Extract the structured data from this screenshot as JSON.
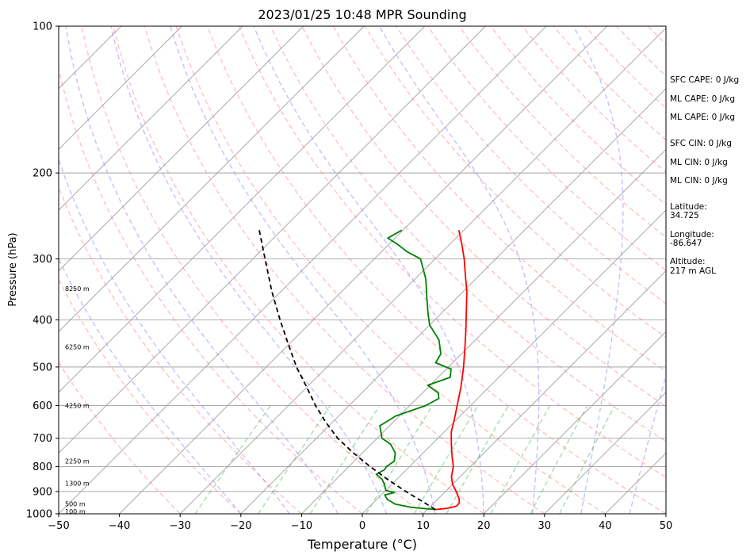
{
  "chart_data": {
    "type": "line",
    "title": "2023/01/25 10:48 MPR Sounding",
    "xlabel": "Temperature (°C)",
    "ylabel": "Pressure (hPa)",
    "xlim": [
      -50,
      50
    ],
    "ylim": [
      1000,
      100
    ],
    "y_scale": "log",
    "x_ticks": [
      -50,
      -40,
      -30,
      -20,
      -10,
      0,
      10,
      20,
      30,
      40,
      50
    ],
    "x_tick_labels": [
      "−50",
      "−40",
      "−30",
      "−20",
      "−10",
      "0",
      "10",
      "20",
      "30",
      "40",
      "50"
    ],
    "y_ticks": [
      1000,
      900,
      800,
      700,
      600,
      500,
      400,
      300,
      200,
      100
    ],
    "y_tick_labels": [
      "1000",
      "900",
      "800",
      "700",
      "600",
      "500",
      "400",
      "300",
      "200",
      "100"
    ],
    "grid": true,
    "series": [
      {
        "name": "",
        "kind": "temperature",
        "color": "#ff0000",
        "points": [
          {
            "p": 980,
            "t": 11.3
          },
          {
            "p": 975,
            "t": 13.0
          },
          {
            "p": 965,
            "t": 14.2
          },
          {
            "p": 950,
            "t": 14.2
          },
          {
            "p": 930,
            "t": 13.4
          },
          {
            "p": 900,
            "t": 11.8
          },
          {
            "p": 870,
            "t": 10.0
          },
          {
            "p": 840,
            "t": 8.6
          },
          {
            "p": 800,
            "t": 7.2
          },
          {
            "p": 760,
            "t": 5.2
          },
          {
            "p": 720,
            "t": 3.2
          },
          {
            "p": 680,
            "t": 1.2
          },
          {
            "p": 640,
            "t": -0.4
          },
          {
            "p": 600,
            "t": -2.2
          },
          {
            "p": 550,
            "t": -4.6
          },
          {
            "p": 500,
            "t": -7.5
          },
          {
            "p": 460,
            "t": -10.2
          },
          {
            "p": 420,
            "t": -13.2
          },
          {
            "p": 380,
            "t": -16.6
          },
          {
            "p": 350,
            "t": -19.4
          },
          {
            "p": 320,
            "t": -22.8
          },
          {
            "p": 300,
            "t": -25.2
          },
          {
            "p": 280,
            "t": -28.0
          },
          {
            "p": 262,
            "t": -30.8
          }
        ]
      },
      {
        "name": "",
        "kind": "dewpoint",
        "color": "#008000",
        "points": [
          {
            "p": 980,
            "t": 11.3
          },
          {
            "p": 970,
            "t": 7.0
          },
          {
            "p": 955,
            "t": 3.8
          },
          {
            "p": 935,
            "t": 1.8
          },
          {
            "p": 915,
            "t": 0.6
          },
          {
            "p": 905,
            "t": 1.8
          },
          {
            "p": 895,
            "t": 0.0
          },
          {
            "p": 870,
            "t": -1.2
          },
          {
            "p": 850,
            "t": -2.4
          },
          {
            "p": 830,
            "t": -4.2
          },
          {
            "p": 812,
            "t": -3.6
          },
          {
            "p": 800,
            "t": -3.8
          },
          {
            "p": 780,
            "t": -3.4
          },
          {
            "p": 750,
            "t": -4.6
          },
          {
            "p": 720,
            "t": -6.8
          },
          {
            "p": 700,
            "t": -9.2
          },
          {
            "p": 660,
            "t": -11.6
          },
          {
            "p": 630,
            "t": -10.6
          },
          {
            "p": 600,
            "t": -7.4
          },
          {
            "p": 580,
            "t": -6.4
          },
          {
            "p": 565,
            "t": -7.4
          },
          {
            "p": 545,
            "t": -10.4
          },
          {
            "p": 525,
            "t": -8.0
          },
          {
            "p": 505,
            "t": -9.2
          },
          {
            "p": 490,
            "t": -12.8
          },
          {
            "p": 470,
            "t": -13.4
          },
          {
            "p": 440,
            "t": -16.0
          },
          {
            "p": 410,
            "t": -20.0
          },
          {
            "p": 390,
            "t": -22.0
          },
          {
            "p": 360,
            "t": -25.0
          },
          {
            "p": 330,
            "t": -28.2
          },
          {
            "p": 300,
            "t": -32.4
          },
          {
            "p": 290,
            "t": -35.8
          },
          {
            "p": 280,
            "t": -38.6
          },
          {
            "p": 272,
            "t": -41.2
          },
          {
            "p": 262,
            "t": -40.2
          }
        ]
      },
      {
        "name": "",
        "kind": "parcel",
        "color": "#000000",
        "dashed": true,
        "points": [
          {
            "p": 980,
            "t": 11.3
          },
          {
            "p": 950,
            "t": 8.5
          },
          {
            "p": 900,
            "t": 3.5
          },
          {
            "p": 850,
            "t": -1.5
          },
          {
            "p": 800,
            "t": -6.5
          },
          {
            "p": 750,
            "t": -11.5
          },
          {
            "p": 700,
            "t": -16.5
          },
          {
            "p": 650,
            "t": -21.0
          },
          {
            "p": 600,
            "t": -25.5
          },
          {
            "p": 550,
            "t": -30.0
          },
          {
            "p": 500,
            "t": -35.0
          },
          {
            "p": 450,
            "t": -40.0
          },
          {
            "p": 400,
            "t": -45.5
          },
          {
            "p": 350,
            "t": -51.5
          },
          {
            "p": 300,
            "t": -58.0
          },
          {
            "p": 260,
            "t": -64.0
          }
        ]
      }
    ],
    "height_labels": [
      {
        "p": 988,
        "label": "100 m"
      },
      {
        "p": 955,
        "label": "500 m"
      },
      {
        "p": 865,
        "label": "1300 m"
      },
      {
        "p": 780,
        "label": "2250 m"
      },
      {
        "p": 600,
        "label": "4250 m"
      },
      {
        "p": 455,
        "label": "6250 m"
      },
      {
        "p": 345,
        "label": "8250 m"
      }
    ],
    "annotations": [
      "SFC CAPE: 0 J/kg",
      "ML CAPE: 0 J/kg",
      "ML CAPE: 0 J/kg",
      "SFC CIN: 0 J/kg",
      "ML CIN: 0 J/kg",
      "ML CIN: 0 J/kg",
      "Latitude:",
      "34.725",
      "Longitude:",
      "-86.647",
      "Altitude:",
      "217 m AGL"
    ],
    "background_lines": {
      "dry_adiabats_color": "#ff9999",
      "moist_adiabats_color": "#9999ff",
      "mixing_ratio_color": "#66bb66",
      "isotherm_color": "#a0a0a0",
      "moist_adiabat_temps": [
        -20,
        -12,
        -4,
        4,
        12,
        20,
        28,
        36,
        44
      ]
    }
  }
}
